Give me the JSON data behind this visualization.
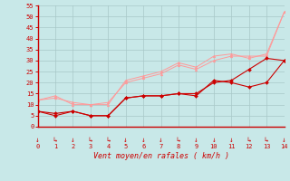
{
  "x": [
    0,
    1,
    2,
    3,
    4,
    5,
    6,
    7,
    8,
    9,
    10,
    11,
    12,
    13,
    14
  ],
  "line1": [
    7,
    5,
    7,
    5,
    5,
    13,
    14,
    14,
    15,
    14,
    21,
    20,
    18,
    20,
    30
  ],
  "line2": [
    12,
    14,
    10,
    10,
    10,
    21,
    23,
    25,
    29,
    27,
    32,
    33,
    31,
    33,
    52
  ],
  "line3": [
    7,
    6,
    7,
    5,
    5,
    13,
    14,
    14,
    15,
    15,
    20,
    21,
    26,
    31,
    30
  ],
  "line4": [
    12,
    13,
    11,
    10,
    11,
    20,
    22,
    24,
    28,
    26,
    30,
    32,
    32,
    32,
    52
  ],
  "bg_color": "#c8e8e8",
  "grid_color": "#a8c8c8",
  "line_dark_color": "#cc0000",
  "line_light_color": "#ff9999",
  "xlabel": "Vent moyen/en rafales ( km/h )",
  "xlabel_color": "#cc0000",
  "tick_color": "#cc0000",
  "axis_color": "#cc0000",
  "ylim": [
    0,
    55
  ],
  "xlim": [
    0,
    14
  ],
  "yticks": [
    0,
    5,
    10,
    15,
    20,
    25,
    30,
    35,
    40,
    45,
    50,
    55
  ],
  "xticks": [
    0,
    1,
    2,
    3,
    4,
    5,
    6,
    7,
    8,
    9,
    10,
    11,
    12,
    13,
    14
  ],
  "arrow_chars": [
    "↓",
    "↳",
    "↓",
    "↳",
    "↳",
    "↓",
    "↓",
    "↓",
    "↳",
    "↓",
    "↓",
    "↓",
    "↳",
    "↳",
    "↓"
  ]
}
